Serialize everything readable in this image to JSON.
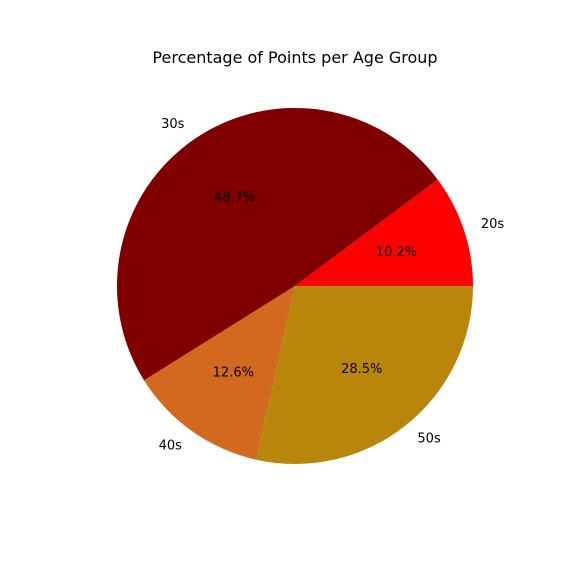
{
  "chart_data": {
    "type": "pie",
    "title": "Percentage of Points per Age Group",
    "categories": [
      "20s",
      "30s",
      "40s",
      "50s"
    ],
    "values": [
      10.2,
      48.7,
      12.6,
      28.5
    ],
    "value_labels": [
      "10.2%",
      "48.7%",
      "12.6%",
      "28.5%"
    ],
    "colors": [
      "#ff0000",
      "#800000",
      "#d2691e",
      "#b8860b"
    ],
    "start_angle_deg": 0,
    "direction": "counterclockwise",
    "legend": "none"
  }
}
